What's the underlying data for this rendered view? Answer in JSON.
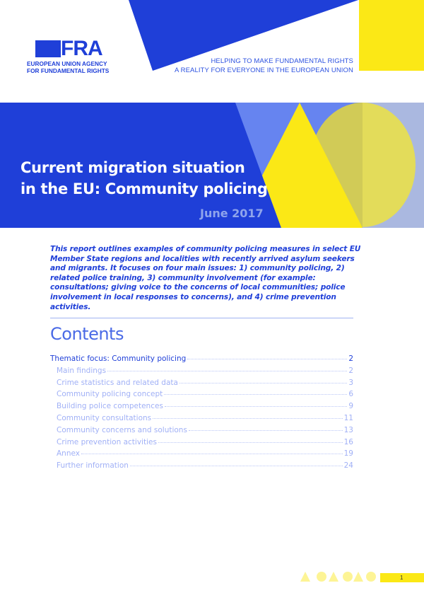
{
  "logo": {
    "text": "FRA",
    "line1": "EUROPEAN UNION AGENCY",
    "line2": "FOR FUNDAMENTAL RIGHTS"
  },
  "tagline": {
    "line1": "HELPING TO MAKE FUNDAMENTAL RIGHTS",
    "line2": "A REALITY FOR EVERYONE IN THE EUROPEAN UNION"
  },
  "cover": {
    "title_line1": "Current migration situation",
    "title_line2": "in the EU: Community policing",
    "date": "June 2017"
  },
  "intro": "This report outlines examples of community policing measures in select EU Member State regions and localities with recently arrived asylum seekers and migrants. It focuses on four main issues: 1) community policing, 2) related police training, 3) community involvement (for example: consultations; giving voice to the concerns of local communities; police involvement in local responses to concerns), and 4) crime prevention activities.",
  "contents": {
    "heading": "Contents",
    "items": [
      {
        "label": "Thematic focus: Community policing",
        "page": "2"
      },
      {
        "label": "Main findings",
        "page": "2"
      },
      {
        "label": "Crime statistics and related data",
        "page": "3"
      },
      {
        "label": "Community policing concept",
        "page": "6"
      },
      {
        "label": "Building police competences",
        "page": "9"
      },
      {
        "label": "Community consultations",
        "page": "11"
      },
      {
        "label": "Community concerns and solutions",
        "page": "13"
      },
      {
        "label": "Crime prevention activities",
        "page": "16"
      },
      {
        "label": "Annex",
        "page": "19"
      },
      {
        "label": "Further information",
        "page": "24"
      }
    ]
  },
  "footer": {
    "page_number": "1"
  },
  "colors": {
    "brand_blue": "#1f3fd8",
    "yellow": "#fbe816"
  }
}
